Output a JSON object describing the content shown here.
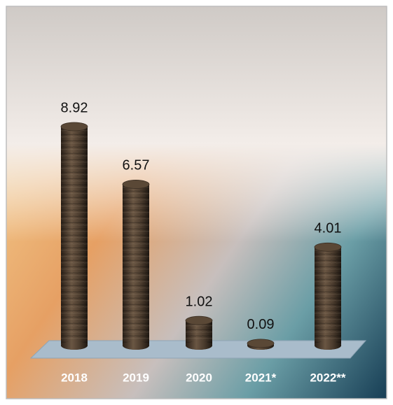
{
  "chart_data": {
    "type": "bar",
    "categories": [
      "2018",
      "2019",
      "2020",
      "2021*",
      "2022**"
    ],
    "values": [
      8.92,
      6.57,
      1.02,
      0.09,
      4.01
    ],
    "color": "#4a3b2d"
  }
}
